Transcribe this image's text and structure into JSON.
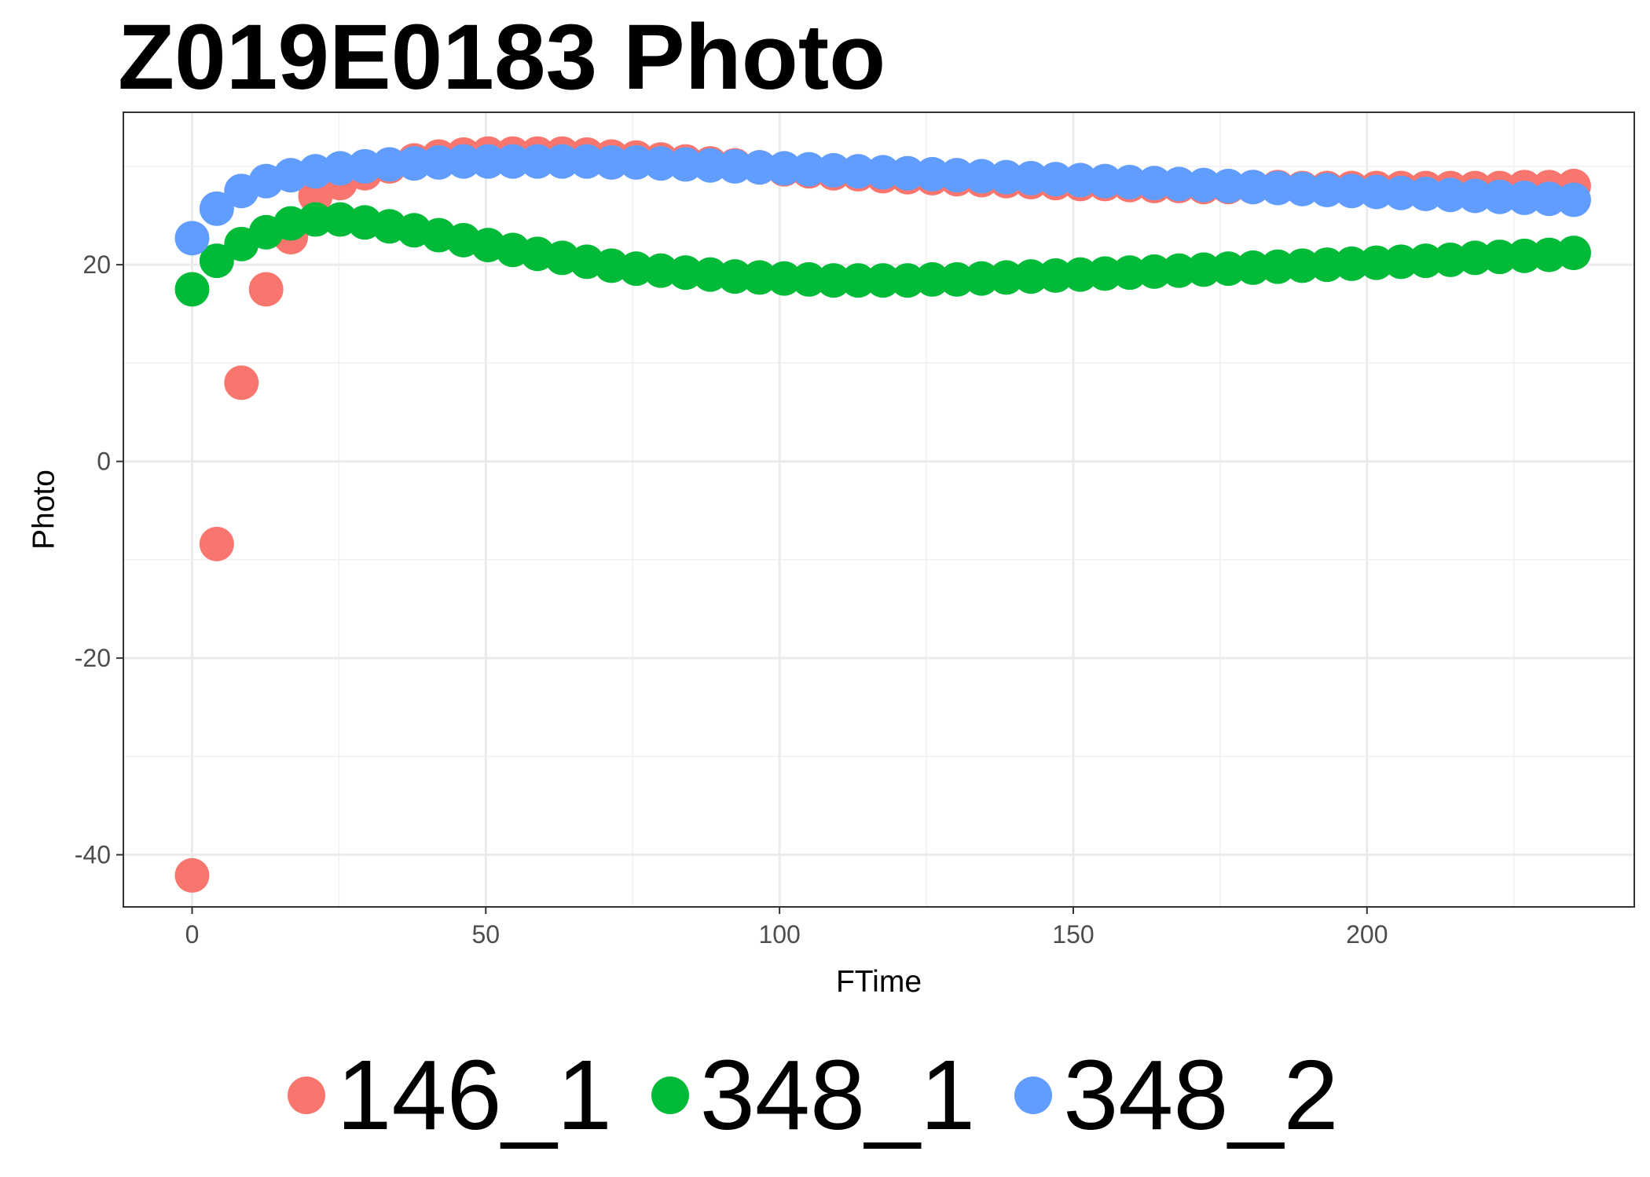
{
  "chart_data": {
    "type": "scatter",
    "title": "Z019E0183 Photo",
    "xlabel": "FTime",
    "ylabel": "Photo",
    "xlim": [
      -11.7,
      245.5
    ],
    "ylim": [
      -45.3,
      35.5
    ],
    "xticks": [
      0,
      50,
      100,
      150,
      200
    ],
    "xtick_labels": [
      "0",
      "50",
      "100",
      "150",
      "200"
    ],
    "yticks": [
      -40,
      -20,
      0,
      20
    ],
    "ytick_labels": [
      "-40",
      "-20",
      "0",
      "20"
    ],
    "grid": true,
    "legend_position": "bottom",
    "series": [
      {
        "name": "146_1",
        "color": "#F8766D",
        "x": [
          0,
          4.2,
          8.4,
          12.6,
          16.8,
          21,
          25.2,
          29.4,
          33.6,
          37.8,
          42,
          46.2,
          50.4,
          54.6,
          58.8,
          63,
          67.2,
          71.4,
          75.6,
          79.8,
          84,
          88.2,
          92.4,
          96.6,
          100.8,
          105,
          109.2,
          113.4,
          117.6,
          121.8,
          126,
          130.2,
          134.4,
          138.6,
          142.8,
          147,
          151.2,
          155.4,
          159.6,
          163.8,
          168,
          172.2,
          176.4,
          180.6,
          184.8,
          189,
          193.2,
          197.4,
          201.6,
          205.8,
          210,
          214.2,
          218.4,
          222.6,
          226.8,
          231,
          235.2
        ],
        "y": [
          -42.1,
          -8.4,
          8.0,
          17.5,
          22.8,
          27.0,
          28.3,
          29.3,
          30.0,
          30.6,
          31.0,
          31.2,
          31.3,
          31.3,
          31.3,
          31.3,
          31.2,
          31.0,
          30.9,
          30.7,
          30.5,
          30.3,
          30.1,
          29.9,
          29.7,
          29.5,
          29.3,
          29.2,
          29.0,
          28.9,
          28.8,
          28.7,
          28.6,
          28.5,
          28.4,
          28.3,
          28.2,
          28.2,
          28.1,
          28.0,
          28.0,
          27.9,
          27.9,
          27.9,
          27.9,
          27.8,
          27.8,
          27.8,
          27.8,
          27.8,
          27.8,
          27.8,
          27.8,
          27.8,
          27.9,
          27.9,
          28.0
        ]
      },
      {
        "name": "348_1",
        "color": "#00BA38",
        "x": [
          0,
          4.2,
          8.4,
          12.6,
          16.8,
          21,
          25.2,
          29.4,
          33.6,
          37.8,
          42,
          46.2,
          50.4,
          54.6,
          58.8,
          63,
          67.2,
          71.4,
          75.6,
          79.8,
          84,
          88.2,
          92.4,
          96.6,
          100.8,
          105,
          109.2,
          113.4,
          117.6,
          121.8,
          126,
          130.2,
          134.4,
          138.6,
          142.8,
          147,
          151.2,
          155.4,
          159.6,
          163.8,
          168,
          172.2,
          176.4,
          180.6,
          184.8,
          189,
          193.2,
          197.4,
          201.6,
          205.8,
          210,
          214.2,
          218.4,
          222.6,
          226.8,
          231,
          235.2
        ],
        "y": [
          17.5,
          20.4,
          22.1,
          23.3,
          24.2,
          24.6,
          24.6,
          24.3,
          23.9,
          23.5,
          23.0,
          22.5,
          22.0,
          21.5,
          21.1,
          20.7,
          20.3,
          19.9,
          19.6,
          19.4,
          19.2,
          19.0,
          18.8,
          18.7,
          18.6,
          18.5,
          18.4,
          18.4,
          18.4,
          18.4,
          18.5,
          18.5,
          18.6,
          18.7,
          18.8,
          18.9,
          19.0,
          19.1,
          19.2,
          19.3,
          19.4,
          19.5,
          19.6,
          19.7,
          19.8,
          19.9,
          20.0,
          20.1,
          20.2,
          20.3,
          20.4,
          20.5,
          20.7,
          20.8,
          20.9,
          21.0,
          21.2
        ]
      },
      {
        "name": "348_2",
        "color": "#619CFF",
        "x": [
          0,
          4.2,
          8.4,
          12.6,
          16.8,
          21,
          25.2,
          29.4,
          33.6,
          37.8,
          42,
          46.2,
          50.4,
          54.6,
          58.8,
          63,
          67.2,
          71.4,
          75.6,
          79.8,
          84,
          88.2,
          92.4,
          96.6,
          100.8,
          105,
          109.2,
          113.4,
          117.6,
          121.8,
          126,
          130.2,
          134.4,
          138.6,
          142.8,
          147,
          151.2,
          155.4,
          159.6,
          163.8,
          168,
          172.2,
          176.4,
          180.6,
          184.8,
          189,
          193.2,
          197.4,
          201.6,
          205.8,
          210,
          214.2,
          218.4,
          222.6,
          226.8,
          231,
          235.2
        ],
        "y": [
          22.7,
          25.7,
          27.5,
          28.5,
          29.1,
          29.5,
          29.8,
          30.0,
          30.2,
          30.3,
          30.4,
          30.5,
          30.5,
          30.5,
          30.5,
          30.5,
          30.5,
          30.4,
          30.4,
          30.3,
          30.2,
          30.1,
          30.0,
          29.9,
          29.8,
          29.7,
          29.6,
          29.5,
          29.4,
          29.3,
          29.2,
          29.1,
          29.0,
          28.9,
          28.8,
          28.7,
          28.6,
          28.5,
          28.4,
          28.3,
          28.2,
          28.1,
          28.0,
          27.9,
          27.8,
          27.7,
          27.6,
          27.5,
          27.4,
          27.3,
          27.2,
          27.1,
          27.0,
          26.9,
          26.8,
          26.7,
          26.6
        ]
      }
    ]
  }
}
